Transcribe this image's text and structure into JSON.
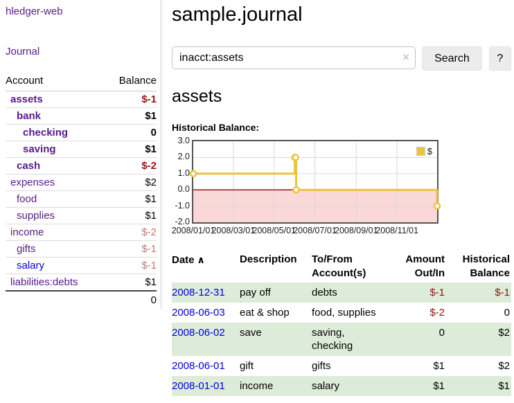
{
  "sidebar": {
    "brand": "hledger-web",
    "nav_journal": "Journal",
    "col_account": "Account",
    "col_balance": "Balance",
    "accounts": [
      {
        "name": "assets",
        "depth": 1,
        "bold": true,
        "balance": "$-1",
        "balance_color": "darkred",
        "link_color": "purple"
      },
      {
        "name": "bank",
        "depth": 2,
        "bold": true,
        "balance": "$1",
        "balance_color": "black",
        "link_color": "purple"
      },
      {
        "name": "checking",
        "depth": 3,
        "bold": true,
        "balance": "0",
        "balance_color": "black",
        "link_color": "purple"
      },
      {
        "name": "saving",
        "depth": 3,
        "bold": true,
        "balance": "$1",
        "balance_color": "black",
        "link_color": "purple"
      },
      {
        "name": "cash",
        "depth": 2,
        "bold": true,
        "balance": "$-2",
        "balance_color": "darkred",
        "link_color": "purple"
      },
      {
        "name": "expenses",
        "depth": 1,
        "bold": false,
        "balance": "$2",
        "balance_color": "black",
        "link_color": "purple"
      },
      {
        "name": "food",
        "depth": 2,
        "bold": false,
        "balance": "$1",
        "balance_color": "black",
        "link_color": "purple"
      },
      {
        "name": "supplies",
        "depth": 2,
        "bold": false,
        "balance": "$1",
        "balance_color": "black",
        "link_color": "purple"
      },
      {
        "name": "income",
        "depth": 1,
        "bold": false,
        "balance": "$-2",
        "balance_color": "softred",
        "link_color": "purple"
      },
      {
        "name": "gifts",
        "depth": 2,
        "bold": false,
        "balance": "$-1",
        "balance_color": "softred",
        "link_color": "purple"
      },
      {
        "name": "salary",
        "depth": 2,
        "bold": false,
        "balance": "$-1",
        "balance_color": "softred",
        "link_color": "blue"
      },
      {
        "name": "liabilities:debts",
        "depth": 1,
        "bold": false,
        "balance": "$1",
        "balance_color": "black",
        "link_color": "purple"
      }
    ],
    "total": "0"
  },
  "main": {
    "title": "sample.journal",
    "search": {
      "value": "inacct:assets",
      "clear_icon": "×",
      "button_label": "Search",
      "help_label": "?"
    },
    "account_heading": "assets",
    "chart_title": "Historical Balance:"
  },
  "chart_data": {
    "type": "line",
    "step": true,
    "title": "Historical Balance:",
    "x_start": "2008-01-01",
    "x_end": "2008-12-31",
    "series": [
      {
        "name": "$",
        "color": "#edc240",
        "points": [
          [
            "2008-01-01",
            1
          ],
          [
            "2008-06-01",
            2
          ],
          [
            "2008-06-02",
            2
          ],
          [
            "2008-06-03",
            0
          ],
          [
            "2008-12-31",
            -1
          ]
        ]
      }
    ],
    "ylim": [
      -2,
      3
    ],
    "yticks": [
      "3.0",
      "2.0",
      "1.0",
      "0.0",
      "-1.0",
      "-2.0"
    ],
    "xticks": [
      "2008/01/01",
      "2008/03/01",
      "2008/05/01",
      "2008/07/01",
      "2008/09/01",
      "2008/11/01"
    ],
    "legend": {
      "label": "$",
      "swatch_color": "#edc240",
      "position": "top-right"
    },
    "grid": true,
    "gridline_color": "#d8d8d8",
    "negative_region_color": "#fbd8d8",
    "zero_line_color": "#8b0000"
  },
  "register": {
    "headers": {
      "date": "Date",
      "sort_icon": "∧",
      "description": "Description",
      "account": "To/From Account(s)",
      "amount": "Amount Out/In",
      "balance": "Historical Balance"
    },
    "rows": [
      {
        "date": "2008-12-31",
        "description": "pay off",
        "accounts": "debts",
        "amount": "$-1",
        "amount_color": "darkred",
        "balance": "$-1",
        "balance_color": "darkred",
        "striped": true
      },
      {
        "date": "2008-06-03",
        "description": "eat & shop",
        "accounts": "food, supplies",
        "amount": "$-2",
        "amount_color": "darkred",
        "balance": "0",
        "balance_color": "black",
        "striped": false
      },
      {
        "date": "2008-06-02",
        "description": "save",
        "accounts": "saving, checking",
        "amount": "0",
        "amount_color": "black",
        "balance": "$2",
        "balance_color": "black",
        "striped": true
      },
      {
        "date": "2008-06-01",
        "description": "gift",
        "accounts": "gifts",
        "amount": "$1",
        "amount_color": "black",
        "balance": "$2",
        "balance_color": "black",
        "striped": false
      },
      {
        "date": "2008-01-01",
        "description": "income",
        "accounts": "salary",
        "amount": "$1",
        "amount_color": "black",
        "balance": "$1",
        "balance_color": "black",
        "striped": true
      }
    ]
  },
  "colors": {
    "link_purple": "#551a8b",
    "link_blue": "#0000dd",
    "dark_red": "#951111",
    "soft_red": "#c17777",
    "stripe_green": "#ddecd9",
    "chart_line": "#edc240"
  }
}
